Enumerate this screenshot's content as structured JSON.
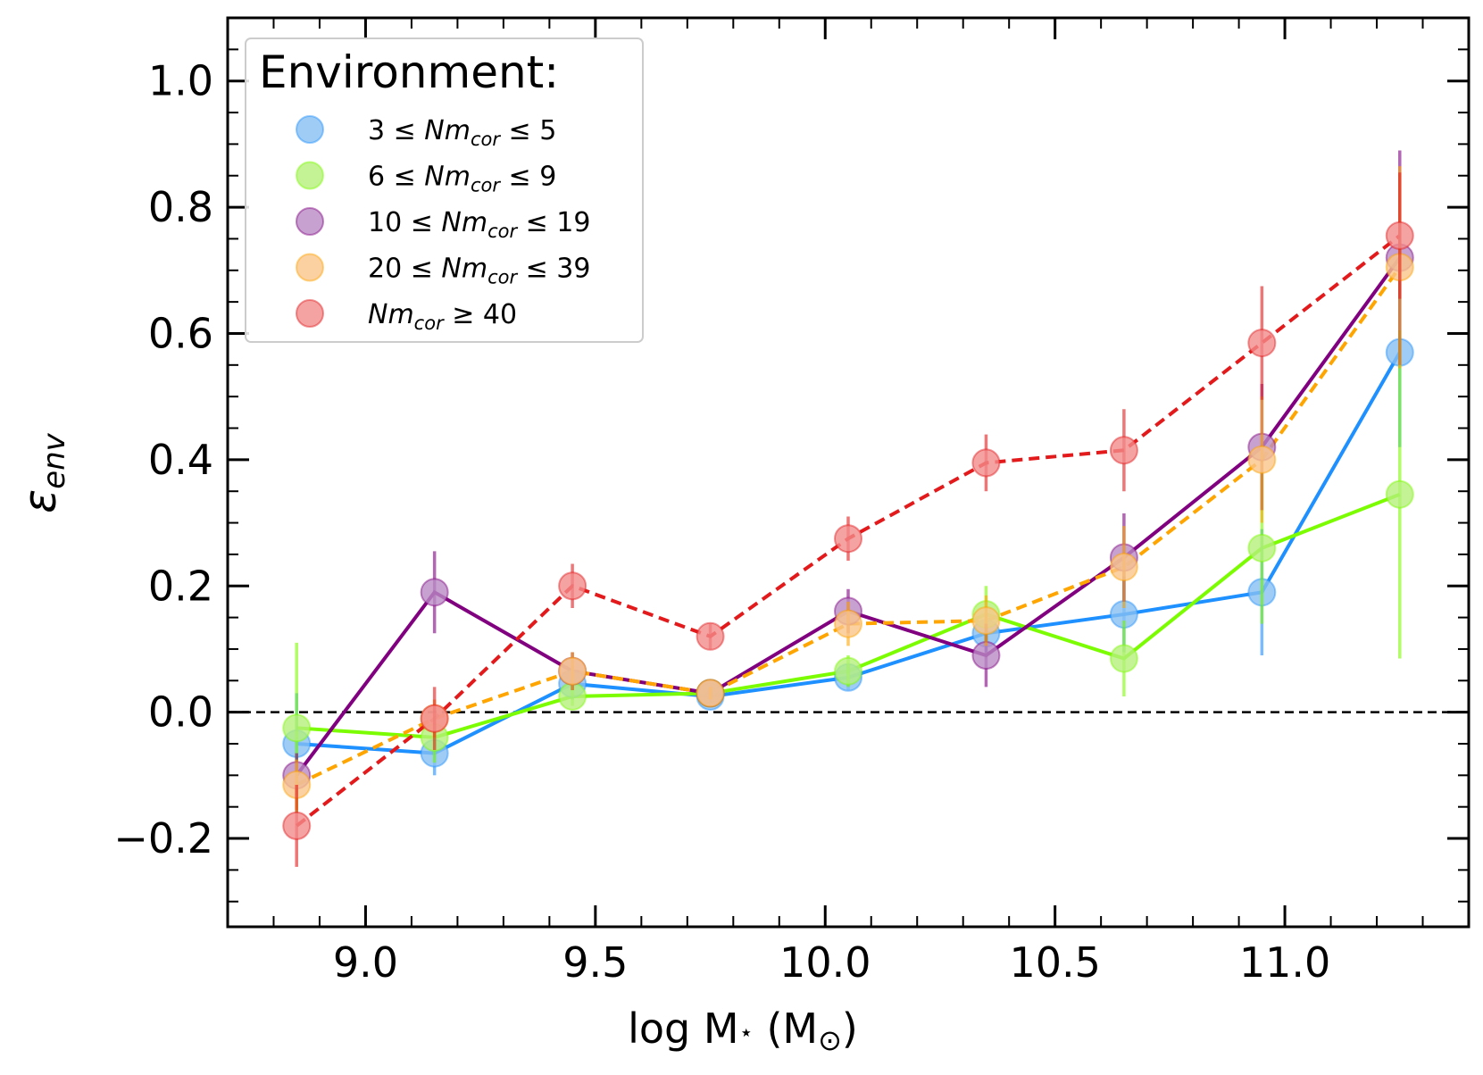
{
  "chart_data": {
    "type": "line",
    "xlabel": "log M",
    "xlabel_sub": "⋆",
    "xlabel_unit": " (M",
    "xlabel_unit_sub": "⊙",
    "xlabel_close": ")",
    "ylabel": "ε",
    "ylabel_sub": "env",
    "xlim": [
      8.7,
      11.4
    ],
    "ylim": [
      -0.34,
      1.1
    ],
    "xticks": [
      {
        "value": 9.0,
        "label": "9.0"
      },
      {
        "value": 9.5,
        "label": "9.5"
      },
      {
        "value": 10.0,
        "label": "10.0"
      },
      {
        "value": 10.5,
        "label": "10.5"
      },
      {
        "value": 11.0,
        "label": "11.0"
      }
    ],
    "yticks": [
      {
        "value": -0.2,
        "label": "−0.2"
      },
      {
        "value": 0.0,
        "label": "0.0"
      },
      {
        "value": 0.2,
        "label": "0.2"
      },
      {
        "value": 0.4,
        "label": "0.4"
      },
      {
        "value": 0.6,
        "label": "0.6"
      },
      {
        "value": 0.8,
        "label": "0.8"
      },
      {
        "value": 1.0,
        "label": "1.0"
      }
    ],
    "reference_line": {
      "y": 0.0,
      "style": "dashed",
      "color": "#000000"
    },
    "x": [
      8.85,
      9.15,
      9.45,
      9.75,
      10.05,
      10.35,
      10.65,
      10.95,
      11.25
    ],
    "legend": {
      "title": "Environment:",
      "position": "top-left"
    },
    "series": [
      {
        "name": "3 ≤ Nm_cor ≤ 5",
        "label_parts": [
          "3 ≤ ",
          "Nm",
          "cor",
          " ≤ 5"
        ],
        "color": "#1e90ff",
        "marker_color": "#87bff2",
        "dashed": false,
        "values": [
          -0.05,
          -0.065,
          0.045,
          0.025,
          0.055,
          0.125,
          0.155,
          0.19,
          0.57
        ],
        "errors": [
          0.08,
          0.035,
          0.025,
          0.01,
          0.02,
          0.03,
          0.06,
          0.1,
          0.15
        ]
      },
      {
        "name": "6 ≤ Nm_cor ≤ 9",
        "label_parts": [
          "6 ≤ ",
          "Nm",
          "cor",
          " ≤ 9"
        ],
        "color": "#7cfc00",
        "marker_color": "#b4f07a",
        "dashed": false,
        "values": [
          -0.025,
          -0.04,
          0.025,
          0.03,
          0.065,
          0.155,
          0.085,
          0.26,
          0.345
        ],
        "errors": [
          0.135,
          0.04,
          0.015,
          0.01,
          0.025,
          0.045,
          0.06,
          0.12,
          0.26
        ]
      },
      {
        "name": "10 ≤ Nm_cor ≤ 19",
        "label_parts": [
          "10 ≤ ",
          "Nm",
          "cor",
          " ≤ 19"
        ],
        "color": "#800080",
        "marker_color": "#b98bc4",
        "dashed": false,
        "values": [
          -0.1,
          0.19,
          0.065,
          0.03,
          0.16,
          0.09,
          0.245,
          0.42,
          0.72
        ],
        "errors": [
          0.035,
          0.065,
          0.03,
          0.01,
          0.035,
          0.05,
          0.07,
          0.1,
          0.17
        ]
      },
      {
        "name": "20 ≤ Nm_cor ≤ 39",
        "label_parts": [
          "20 ≤ ",
          "Nm",
          "cor",
          " ≤ 39"
        ],
        "color": "#ffa500",
        "marker_color": "#fac68a",
        "dashed": true,
        "values": [
          -0.115,
          -0.01,
          0.065,
          0.03,
          0.14,
          0.145,
          0.23,
          0.4,
          0.705
        ],
        "errors": [
          0.04,
          0.03,
          0.03,
          0.01,
          0.035,
          0.04,
          0.065,
          0.1,
          0.16
        ]
      },
      {
        "name": "Nm_cor ≥ 40",
        "label_parts": [
          "",
          "Nm",
          "cor",
          " ≥ 40"
        ],
        "color": "#e31a1c",
        "marker_color": "#f28b8b",
        "dashed": true,
        "values": [
          -0.18,
          -0.01,
          0.2,
          0.12,
          0.275,
          0.395,
          0.415,
          0.585,
          0.755
        ],
        "errors": [
          0.065,
          0.05,
          0.035,
          0.02,
          0.035,
          0.045,
          0.065,
          0.09,
          0.1
        ]
      }
    ]
  }
}
